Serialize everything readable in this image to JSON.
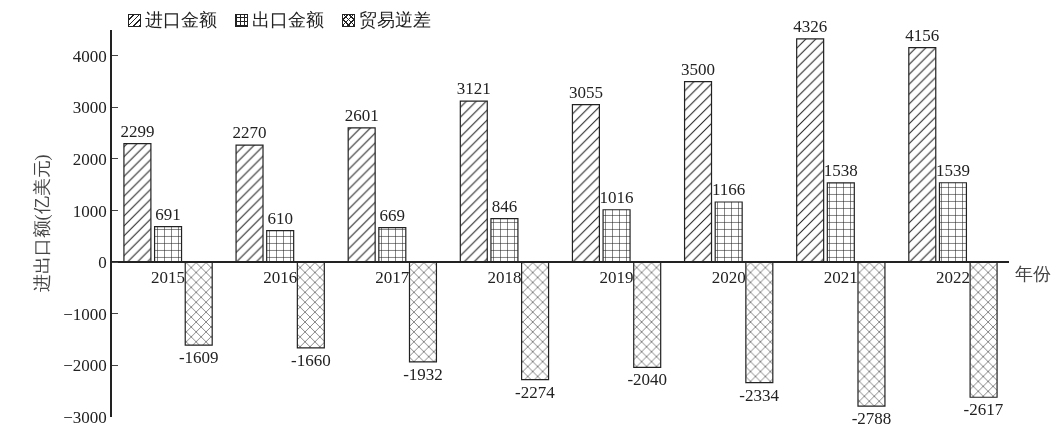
{
  "chart_data": {
    "type": "bar",
    "xlabel": "年份",
    "ylabel": "进出口额(亿美元)",
    "categories": [
      "2015",
      "2016",
      "2017",
      "2018",
      "2019",
      "2020",
      "2021",
      "2022"
    ],
    "series": [
      {
        "name": "进口金额",
        "color": "#222222",
        "values": [
          2299,
          2270,
          2601,
          3121,
          3055,
          3500,
          4326,
          4156
        ]
      },
      {
        "name": "出口金额",
        "color": "#222222",
        "values": [
          691,
          610,
          669,
          846,
          1016,
          1166,
          1538,
          1539
        ]
      },
      {
        "name": "贸易逆差",
        "color": "#222222",
        "values": [
          -1609,
          -1660,
          -1932,
          -2274,
          -2040,
          -2334,
          -2788,
          -2617
        ]
      }
    ],
    "ylim": [
      -3000,
      4500
    ],
    "yticks": [
      -3000,
      -2000,
      -1000,
      0,
      1000,
      2000,
      3000,
      4000
    ],
    "data_labels": true,
    "grid": false,
    "legend": "top left"
  }
}
